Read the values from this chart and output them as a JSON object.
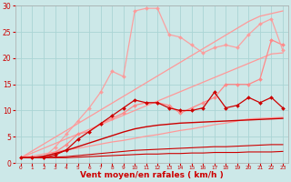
{
  "background_color": "#cce8e8",
  "grid_color": "#aad4d4",
  "xlabel": "Vent moyen/en rafales ( km/h )",
  "xlabel_fontsize": 6.5,
  "xlabel_color": "#cc0000",
  "tick_color": "#cc0000",
  "xlim": [
    -0.5,
    23.5
  ],
  "ylim": [
    0,
    30
  ],
  "yticks": [
    0,
    5,
    10,
    15,
    20,
    25,
    30
  ],
  "xticks": [
    0,
    1,
    2,
    3,
    4,
    5,
    6,
    7,
    8,
    9,
    10,
    11,
    12,
    13,
    14,
    15,
    16,
    17,
    18,
    19,
    20,
    21,
    22,
    23
  ],
  "lines": [
    {
      "x": [
        0,
        1,
        2,
        3,
        4,
        5,
        6,
        7,
        8,
        9,
        10,
        11,
        12,
        13,
        14,
        15,
        16,
        17,
        18,
        19,
        20,
        21,
        22,
        23
      ],
      "y": [
        1.0,
        1.3,
        1.7,
        2.1,
        2.5,
        2.8,
        3.2,
        3.6,
        4.0,
        4.3,
        4.7,
        5.1,
        5.4,
        5.8,
        6.2,
        6.5,
        6.9,
        7.3,
        7.6,
        8.0,
        8.4,
        8.5,
        8.6,
        8.7
      ],
      "color": "#ff9999",
      "linewidth": 0.9,
      "marker": null,
      "alpha": 1.0
    },
    {
      "x": [
        0,
        1,
        2,
        3,
        4,
        5,
        6,
        7,
        8,
        9,
        10,
        11,
        12,
        13,
        14,
        15,
        16,
        17,
        18,
        19,
        20,
        21,
        22,
        23
      ],
      "y": [
        1.0,
        1.9,
        2.8,
        3.7,
        4.6,
        5.5,
        6.4,
        7.3,
        8.2,
        9.1,
        10.0,
        10.9,
        11.8,
        12.7,
        13.6,
        14.5,
        15.4,
        16.3,
        17.2,
        18.1,
        19.0,
        19.9,
        20.8,
        21.0
      ],
      "color": "#ff9999",
      "linewidth": 0.9,
      "marker": null,
      "alpha": 1.0
    },
    {
      "x": [
        0,
        1,
        2,
        3,
        4,
        5,
        6,
        7,
        8,
        9,
        10,
        11,
        12,
        13,
        14,
        15,
        16,
        17,
        18,
        19,
        20,
        21,
        22,
        23
      ],
      "y": [
        1.0,
        2.3,
        3.6,
        4.9,
        6.2,
        7.5,
        8.8,
        10.1,
        11.4,
        12.7,
        14.0,
        15.3,
        16.6,
        17.9,
        19.2,
        20.5,
        21.8,
        23.1,
        24.4,
        25.7,
        27.0,
        28.0,
        28.5,
        29.0
      ],
      "color": "#ff9999",
      "linewidth": 0.9,
      "marker": null,
      "alpha": 1.0
    },
    {
      "x": [
        0,
        1,
        2,
        3,
        4,
        5,
        6,
        7,
        8,
        9,
        10,
        11,
        12,
        13,
        14,
        15,
        16,
        17,
        18,
        19,
        20,
        21,
        22,
        23
      ],
      "y": [
        1.0,
        1.0,
        1.0,
        2.0,
        3.5,
        5.5,
        6.0,
        7.5,
        8.5,
        9.5,
        11.0,
        11.5,
        11.5,
        11.0,
        9.5,
        10.5,
        11.5,
        12.5,
        15.0,
        15.0,
        15.0,
        16.0,
        23.5,
        22.5
      ],
      "color": "#ff8888",
      "linewidth": 0.9,
      "marker": "D",
      "markersize": 2.0,
      "alpha": 1.0
    },
    {
      "x": [
        0,
        1,
        2,
        3,
        4,
        5,
        6,
        7,
        8,
        9,
        10,
        11,
        12,
        13,
        14,
        15,
        16,
        17,
        18,
        19,
        20,
        21,
        22,
        23
      ],
      "y": [
        1.0,
        1.0,
        1.0,
        3.0,
        5.5,
        8.0,
        10.5,
        13.5,
        17.5,
        16.5,
        29.0,
        29.5,
        29.5,
        24.5,
        24.0,
        22.5,
        21.0,
        22.0,
        22.5,
        22.0,
        24.5,
        26.5,
        27.5,
        21.5
      ],
      "color": "#ff9999",
      "linewidth": 0.9,
      "marker": "D",
      "markersize": 2.0,
      "alpha": 0.9
    },
    {
      "x": [
        0,
        1,
        2,
        3,
        4,
        5,
        6,
        7,
        8,
        9,
        10,
        11,
        12,
        13,
        14,
        15,
        16,
        17,
        18,
        19,
        20,
        21,
        22,
        23
      ],
      "y": [
        1.0,
        1.0,
        1.0,
        1.5,
        2.5,
        4.5,
        6.0,
        7.5,
        9.0,
        10.5,
        12.0,
        11.5,
        11.5,
        10.5,
        10.0,
        10.0,
        10.5,
        13.5,
        10.5,
        11.0,
        12.5,
        11.5,
        12.5,
        10.5
      ],
      "color": "#cc0000",
      "linewidth": 0.9,
      "marker": "D",
      "markersize": 2.0,
      "alpha": 1.0
    },
    {
      "x": [
        0,
        1,
        2,
        3,
        4,
        5,
        6,
        7,
        8,
        9,
        10,
        11,
        12,
        13,
        14,
        15,
        16,
        17,
        18,
        19,
        20,
        21,
        22,
        23
      ],
      "y": [
        1.0,
        1.0,
        1.3,
        1.8,
        2.4,
        3.1,
        3.8,
        4.5,
        5.2,
        5.9,
        6.5,
        6.9,
        7.2,
        7.4,
        7.6,
        7.7,
        7.8,
        7.9,
        8.0,
        8.1,
        8.2,
        8.3,
        8.4,
        8.5
      ],
      "color": "#cc0000",
      "linewidth": 1.0,
      "marker": null,
      "alpha": 1.0
    },
    {
      "x": [
        0,
        1,
        2,
        3,
        4,
        5,
        6,
        7,
        8,
        9,
        10,
        11,
        12,
        13,
        14,
        15,
        16,
        17,
        18,
        19,
        20,
        21,
        22,
        23
      ],
      "y": [
        1.0,
        1.0,
        1.0,
        1.1,
        1.2,
        1.4,
        1.6,
        1.8,
        2.0,
        2.2,
        2.4,
        2.5,
        2.6,
        2.7,
        2.8,
        2.9,
        3.0,
        3.1,
        3.1,
        3.2,
        3.3,
        3.4,
        3.5,
        3.5
      ],
      "color": "#cc0000",
      "linewidth": 0.8,
      "marker": null,
      "alpha": 1.0
    },
    {
      "x": [
        0,
        1,
        2,
        3,
        4,
        5,
        6,
        7,
        8,
        9,
        10,
        11,
        12,
        13,
        14,
        15,
        16,
        17,
        18,
        19,
        20,
        21,
        22,
        23
      ],
      "y": [
        1.0,
        1.0,
        1.0,
        1.0,
        1.0,
        1.1,
        1.2,
        1.3,
        1.4,
        1.5,
        1.6,
        1.7,
        1.7,
        1.8,
        1.8,
        1.9,
        1.9,
        2.0,
        2.0,
        2.0,
        2.1,
        2.1,
        2.1,
        2.2
      ],
      "color": "#cc0000",
      "linewidth": 0.8,
      "marker": null,
      "alpha": 1.0
    }
  ]
}
